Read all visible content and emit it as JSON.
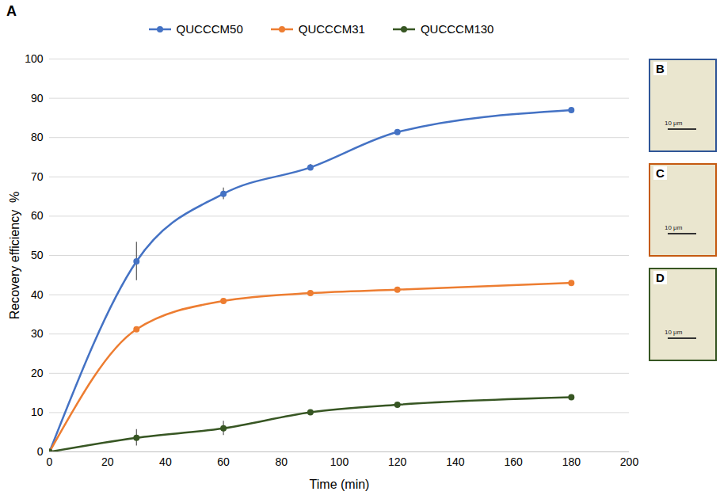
{
  "chart_data": {
    "type": "line",
    "panel_label": "A",
    "x_label": "Time (min)",
    "y_label": "Recovery efficiency  %",
    "x": [
      0,
      30,
      60,
      90,
      120,
      180
    ],
    "series": [
      {
        "name": "QUCCCM50",
        "color": "#4472c4",
        "marker": "circle",
        "values": [
          0,
          48.5,
          65.7,
          72.4,
          81.4,
          87
        ],
        "error": [
          0,
          4.9,
          1.5,
          0.8,
          0,
          0
        ]
      },
      {
        "name": "QUCCCM31",
        "color": "#ed7d31",
        "marker": "circle",
        "values": [
          0,
          31.2,
          38.4,
          40.4,
          41.3,
          43
        ],
        "error": [
          0,
          0.3,
          0.3,
          0.3,
          0,
          0
        ]
      },
      {
        "name": "QUCCCM130",
        "color": "#375623",
        "marker": "circle",
        "values": [
          0,
          3.6,
          6.0,
          10.1,
          12,
          13.9
        ],
        "error": [
          0,
          2.1,
          1.8,
          0.5,
          0,
          0
        ]
      }
    ],
    "xlim": [
      0,
      200
    ],
    "xticks": [
      0,
      20,
      40,
      60,
      80,
      100,
      120,
      140,
      160,
      180,
      200
    ],
    "ylim": [
      0,
      100
    ],
    "yticks": [
      0,
      10,
      20,
      30,
      40,
      50,
      60,
      70,
      80,
      90,
      100
    ],
    "grid": true,
    "legend": "top",
    "insets": [
      {
        "label": "B",
        "color": "#2f5597",
        "scale_bar": "10 μm"
      },
      {
        "label": "C",
        "color": "#c55a11",
        "scale_bar": "10 μm"
      },
      {
        "label": "D",
        "color": "#375623",
        "scale_bar": "10 μm"
      }
    ]
  }
}
